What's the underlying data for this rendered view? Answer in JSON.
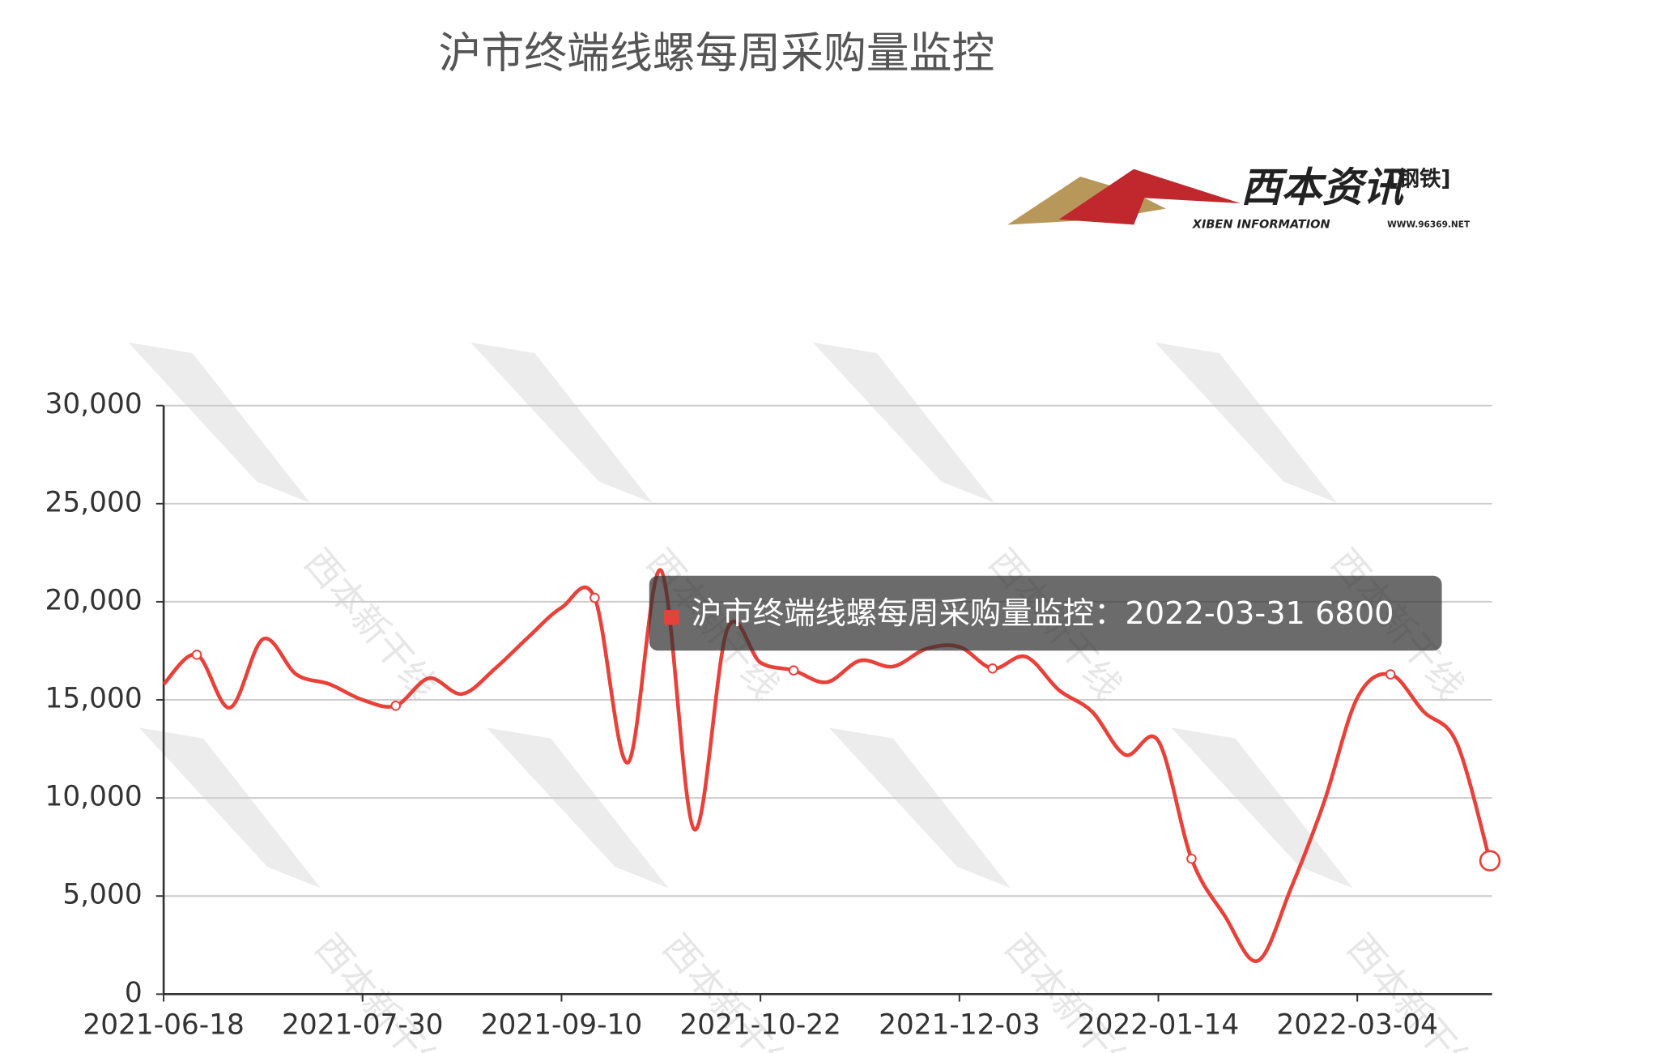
{
  "chart_data": {
    "type": "line",
    "title": "沪市终端线螺每周采购量监控",
    "logo": {
      "name": "西本资讯",
      "tag": "[钢铁]",
      "english": "XIBEN INFORMATION",
      "url": "WWW.96369.NET"
    },
    "watermark": "西本新干线",
    "categories": [
      "2021-06-18",
      null,
      null,
      null,
      null,
      null,
      "2021-07-30",
      null,
      null,
      null,
      null,
      null,
      "2021-09-10",
      null,
      null,
      null,
      null,
      null,
      "2021-10-22",
      null,
      null,
      null,
      null,
      null,
      "2021-12-03",
      null,
      null,
      null,
      null,
      null,
      "2022-01-14",
      null,
      null,
      null,
      null,
      null,
      "2022-03-04",
      null,
      null,
      null,
      "2022-03-31"
    ],
    "series": [
      {
        "name": "沪市终端线螺每周采购量监控",
        "color": "#e8413a",
        "values": [
          15800,
          17300,
          14600,
          18100,
          16300,
          15800,
          15000,
          14700,
          16100,
          15300,
          16600,
          18200,
          19700,
          20200,
          11800,
          21600,
          8400,
          18600,
          16900,
          16500,
          15900,
          17000,
          16700,
          17600,
          17700,
          16600,
          17200,
          15500,
          14400,
          12200,
          12900,
          6900,
          4000,
          1700,
          5400,
          9800,
          15100,
          16300,
          14400,
          12800,
          6800
        ]
      }
    ],
    "ylim": [
      0,
      30000
    ],
    "yticks": [
      0,
      {
        "value": 5000,
        "label": "5,000"
      },
      {
        "value": 10000,
        "label": "10,000"
      },
      {
        "value": 15000,
        "label": "15,000"
      },
      {
        "value": 20000,
        "label": "20,000"
      },
      {
        "value": 25000,
        "label": "25,000"
      },
      {
        "value": 30000,
        "label": "30,000"
      }
    ],
    "grid": true,
    "tooltip": {
      "text": "沪市终端线螺每周采购量监控：2022-03-31 6800",
      "index": 40
    }
  }
}
